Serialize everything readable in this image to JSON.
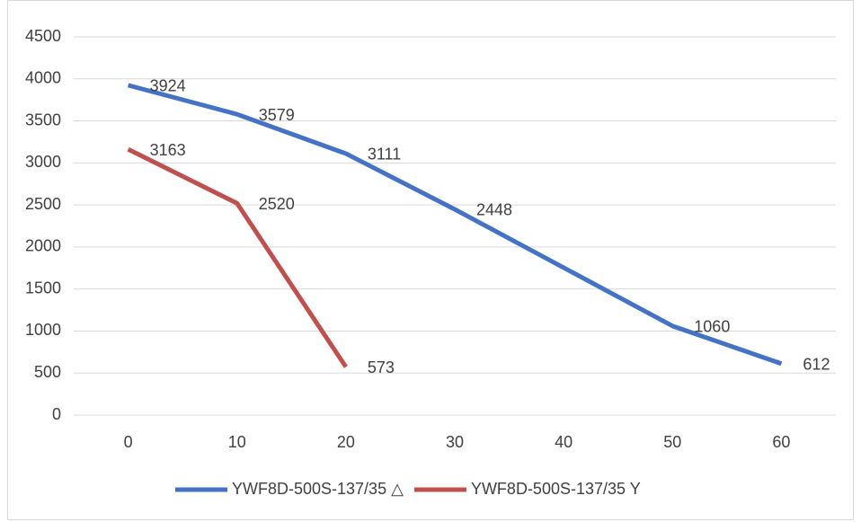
{
  "chart_data": {
    "type": "line",
    "xlim": [
      -5,
      65
    ],
    "xticks": [
      0,
      10,
      20,
      30,
      40,
      50,
      60
    ],
    "ylim": [
      0,
      4500
    ],
    "yticks": [
      0,
      500,
      1000,
      1500,
      2000,
      2500,
      3000,
      3500,
      4000,
      4500
    ],
    "grid": true,
    "legend": "bottom",
    "series": [
      {
        "name": "YWF8D-500S-137/35 △",
        "color": "#4472c4",
        "x": [
          0,
          10,
          20,
          30,
          50,
          60
        ],
        "values": [
          3924,
          3579,
          3111,
          2448,
          1060,
          612
        ]
      },
      {
        "name": "YWF8D-500S-137/35 Y",
        "color": "#c0504d",
        "x": [
          0,
          10,
          20
        ],
        "values": [
          3163,
          2520,
          573
        ]
      }
    ]
  }
}
